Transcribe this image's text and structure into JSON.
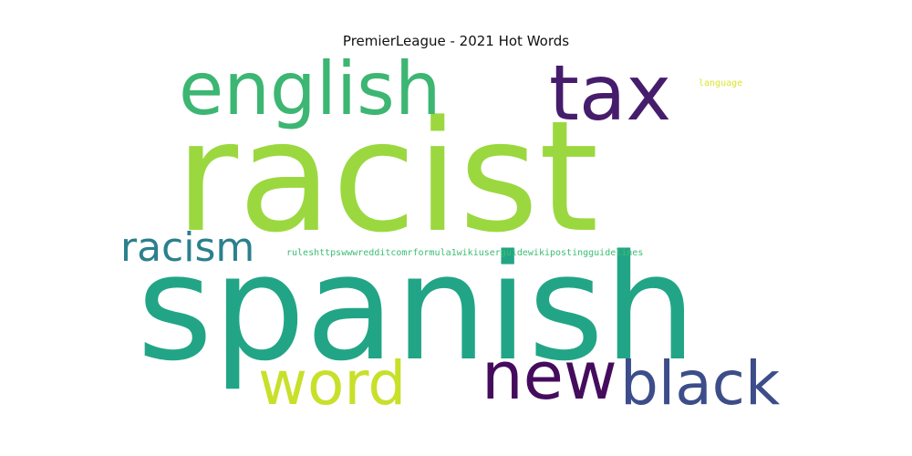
{
  "title": "PremierLeague - 2021 Hot Words",
  "words": [
    {
      "text": "racist",
      "color": "#9bd83f"
    },
    {
      "text": "spanish",
      "color": "#22a586"
    },
    {
      "text": "english",
      "color": "#3cb672"
    },
    {
      "text": "tax",
      "color": "#461c6c"
    },
    {
      "text": "racism",
      "color": "#2b808d"
    },
    {
      "text": "new",
      "color": "#450c5e"
    },
    {
      "text": "black",
      "color": "#3c4d8a"
    },
    {
      "text": "word",
      "color": "#c8e02a"
    },
    {
      "text": "language",
      "color": "#dce42b"
    },
    {
      "text": "ruleshttpswwwredditcomrformula1wikiuserguidewikipostingguidelines",
      "color": "#3cbd73"
    }
  ]
}
